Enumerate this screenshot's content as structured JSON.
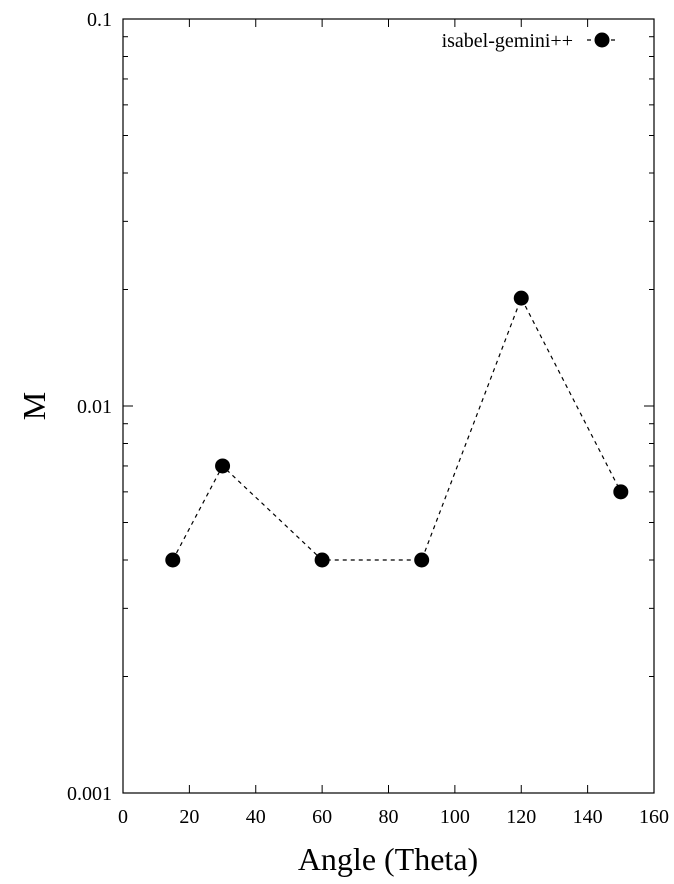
{
  "chart_data": {
    "type": "line",
    "title": "",
    "xlabel": "Angle (Theta)",
    "ylabel": "M",
    "xlim": [
      0,
      160
    ],
    "ylim": [
      0.001,
      0.1
    ],
    "yscale": "log",
    "xticks": [
      0,
      20,
      40,
      60,
      80,
      100,
      120,
      140,
      160
    ],
    "xtick_labels": [
      "0",
      "20",
      "40",
      "60",
      "80",
      "100",
      "120",
      "140",
      "160"
    ],
    "yticks": [
      0.001,
      0.01,
      0.1
    ],
    "ytick_labels": [
      "0.001",
      "0.01",
      "0.1"
    ],
    "grid": false,
    "legend_position": "top-right",
    "series": [
      {
        "name": "isabel-gemini++",
        "style": "dashed line with filled circle markers",
        "color": "#000000",
        "x": [
          15,
          30,
          60,
          90,
          120,
          150
        ],
        "y": [
          0.004,
          0.007,
          0.004,
          0.004,
          0.019,
          0.006
        ]
      }
    ]
  }
}
